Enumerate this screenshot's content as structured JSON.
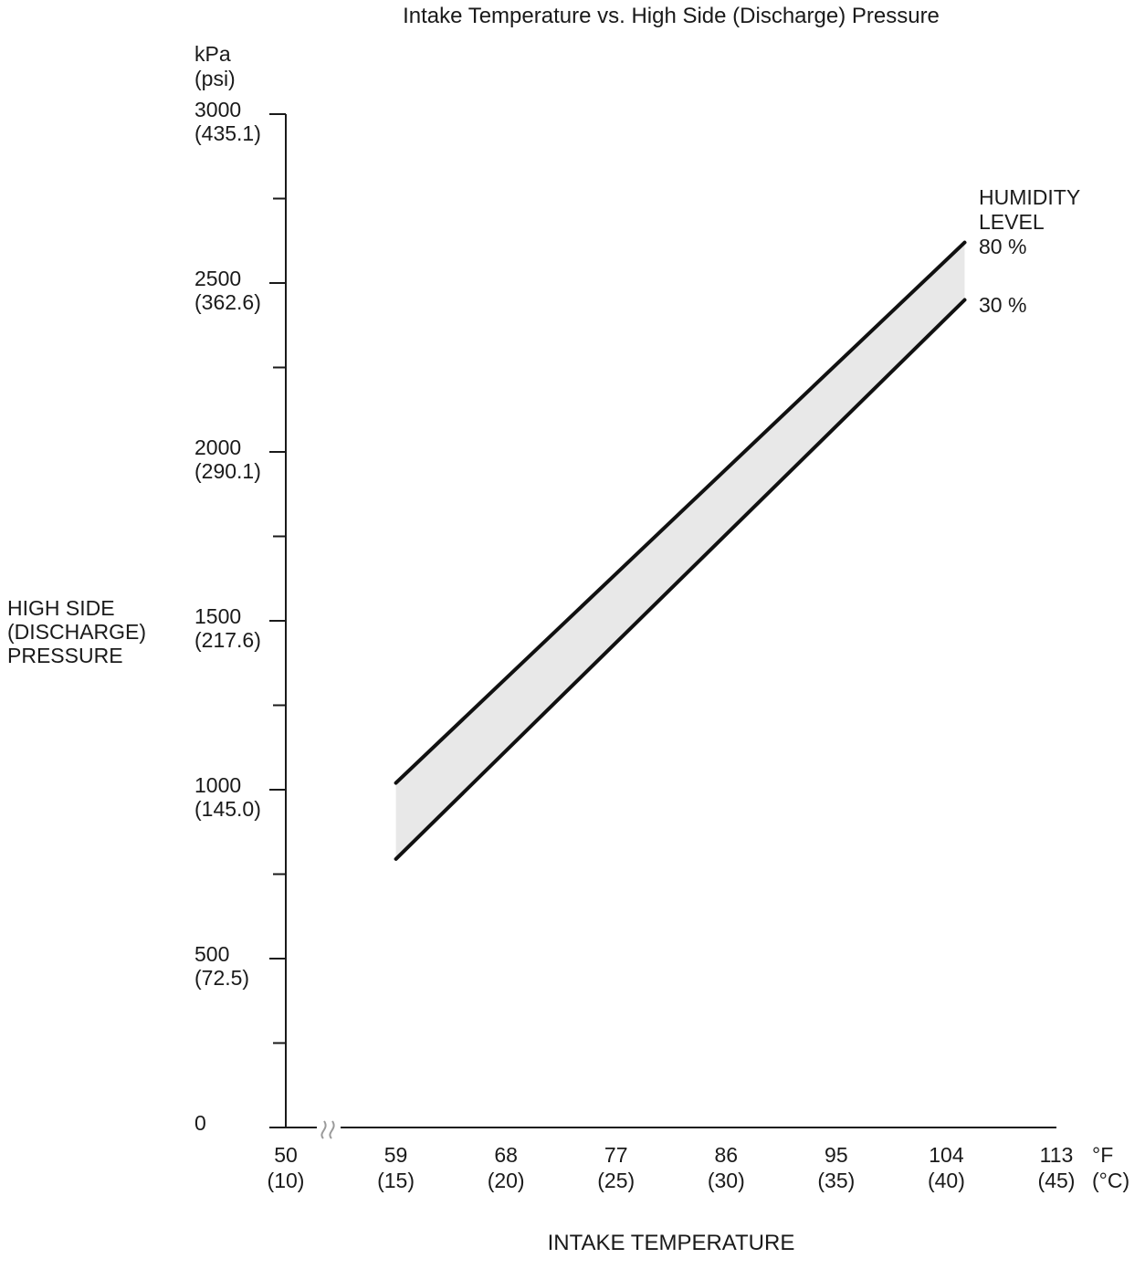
{
  "title": "Intake Temperature vs. High Side (Discharge) Pressure",
  "y_axis": {
    "unit_lines": [
      "kPa",
      "(psi)"
    ],
    "title_lines": [
      "HIGH SIDE",
      "(DISCHARGE)",
      "PRESSURE"
    ],
    "ticks": [
      {
        "value": 3000,
        "label": "3000",
        "sub": "(435.1)"
      },
      {
        "value": 2500,
        "label": "2500",
        "sub": "(362.6)"
      },
      {
        "value": 2000,
        "label": "2000",
        "sub": "(290.1)"
      },
      {
        "value": 1500,
        "label": "1500",
        "sub": "(217.6)"
      },
      {
        "value": 1000,
        "label": "1000",
        "sub": "(145.0)"
      },
      {
        "value": 500,
        "label": "500",
        "sub": "(72.5)"
      },
      {
        "value": 0,
        "label": "0",
        "sub": ""
      }
    ],
    "minor_ticks": [
      2750,
      2250,
      1750,
      1250,
      750,
      250
    ]
  },
  "x_axis": {
    "title": "INTAKE TEMPERATURE",
    "unit_primary": "°F",
    "unit_secondary": "(°C)",
    "has_axis_break_after_first_tick": true,
    "ticks": [
      {
        "value": 50,
        "label": "50",
        "sub": "(10)"
      },
      {
        "value": 59,
        "label": "59",
        "sub": "(15)"
      },
      {
        "value": 68,
        "label": "68",
        "sub": "(20)"
      },
      {
        "value": 77,
        "label": "77",
        "sub": "(25)"
      },
      {
        "value": 86,
        "label": "86",
        "sub": "(30)"
      },
      {
        "value": 95,
        "label": "95",
        "sub": "(35)"
      },
      {
        "value": 104,
        "label": "104",
        "sub": "(40)"
      },
      {
        "value": 113,
        "label": "113",
        "sub": "(45)"
      }
    ]
  },
  "legend": {
    "title_lines": [
      "HUMIDITY",
      "LEVEL"
    ]
  },
  "chart_data": {
    "type": "line",
    "title": "Intake Temperature vs. High Side (Discharge) Pressure",
    "xlabel": "INTAKE TEMPERATURE",
    "ylabel": "HIGH SIDE (DISCHARGE) PRESSURE",
    "x_units": [
      "°F",
      "(°C)"
    ],
    "y_units": [
      "kPa",
      "(psi)"
    ],
    "xlim": [
      50,
      113
    ],
    "ylim": [
      0,
      3000
    ],
    "x_ticks_f": [
      50,
      59,
      68,
      77,
      86,
      95,
      104,
      113
    ],
    "x_ticks_c": [
      10,
      15,
      20,
      25,
      30,
      35,
      40,
      45
    ],
    "y_ticks_kpa": [
      0,
      500,
      1000,
      1500,
      2000,
      2500,
      3000
    ],
    "y_ticks_psi": [
      0,
      72.5,
      145.0,
      217.6,
      290.1,
      362.6,
      435.1
    ],
    "grid": false,
    "legend_title": "HUMIDITY LEVEL",
    "legend_position": "top-right",
    "band_between_series": true,
    "band_fill": "#e8e8e8",
    "line_color": "#111111",
    "series": [
      {
        "name": "80 %",
        "humidity_percent": 80,
        "points_f_kpa": [
          [
            59,
            1020
          ],
          [
            105.5,
            2620
          ]
        ]
      },
      {
        "name": "30 %",
        "humidity_percent": 30,
        "points_f_kpa": [
          [
            59,
            795
          ],
          [
            105.5,
            2450
          ]
        ]
      }
    ]
  }
}
